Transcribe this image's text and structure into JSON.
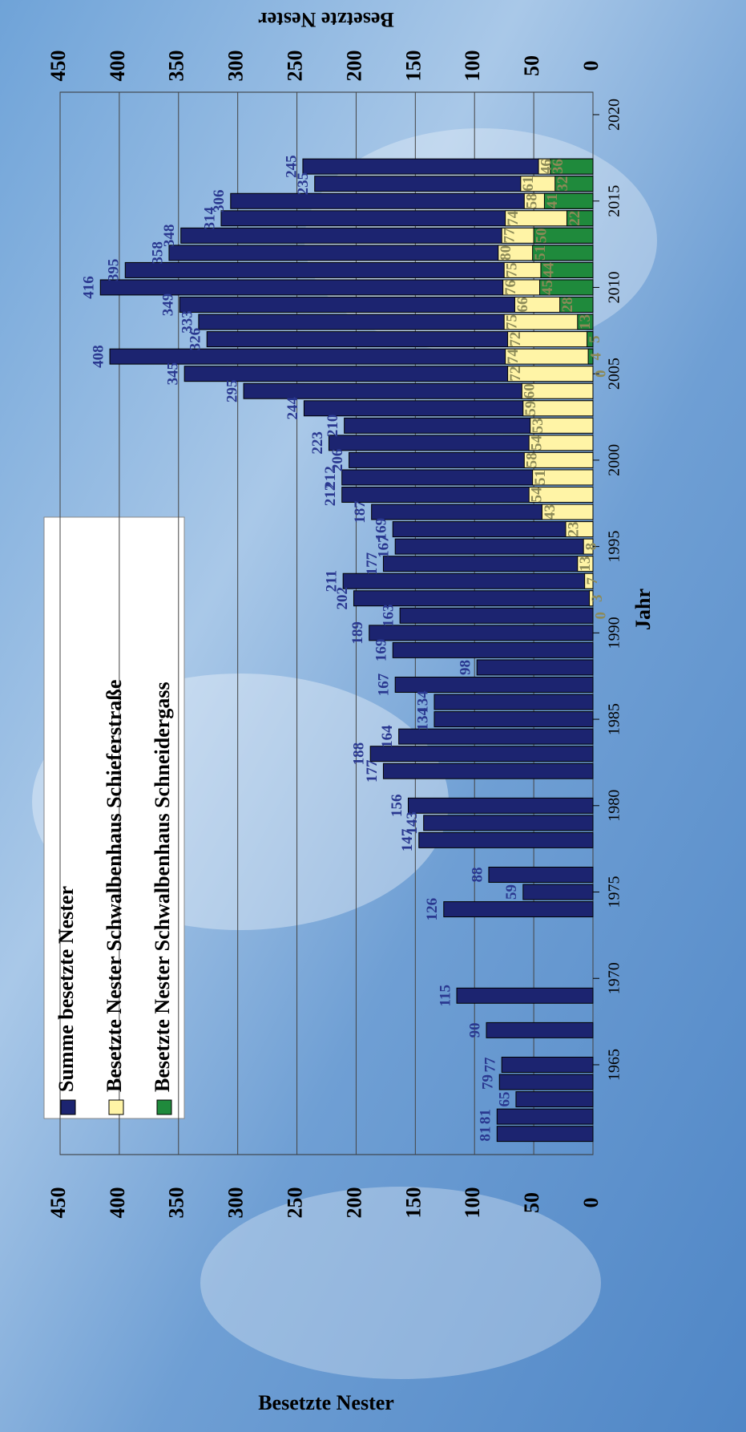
{
  "chart_data": {
    "type": "bar",
    "orientation": "horizontal",
    "xlabel": "Jahr",
    "ylabel": "Besetzte Nester",
    "x": [
      1961,
      1962,
      1963,
      1964,
      1965,
      1967,
      1969,
      1974,
      1975,
      1976,
      1978,
      1979,
      1980,
      1982,
      1983,
      1984,
      1985,
      1986,
      1987,
      1988,
      1989,
      1990,
      1991,
      1992,
      1993,
      1994,
      1995,
      1996,
      1997,
      1998,
      1999,
      2000,
      2001,
      2002,
      2003,
      2004,
      2005,
      2006,
      2007,
      2008,
      2009,
      2010,
      2011,
      2012,
      2013,
      2014,
      2015,
      2016,
      2017
    ],
    "series": [
      {
        "name": "Summe besetzte Nester",
        "color": "#1c2470",
        "label_color": "#2a3890",
        "values": [
          81,
          81,
          65,
          79,
          77,
          90,
          115,
          126,
          59,
          88,
          147,
          143,
          156,
          177,
          188,
          164,
          134,
          134,
          167,
          98,
          169,
          189,
          163,
          202,
          211,
          177,
          167,
          169,
          187,
          212,
          212,
          206,
          223,
          210,
          244,
          295,
          345,
          408,
          326,
          333,
          349,
          416,
          395,
          358,
          348,
          314,
          306,
          235,
          245
        ]
      },
      {
        "name": "Besetzte Nester Schwalbenhaus Schieferstraße",
        "color": "#fff4a6",
        "label_color": "#8c8a58",
        "values": [
          null,
          null,
          null,
          null,
          null,
          null,
          null,
          null,
          null,
          null,
          null,
          null,
          null,
          null,
          null,
          null,
          null,
          null,
          null,
          null,
          null,
          null,
          0,
          3,
          7,
          13,
          8,
          23,
          43,
          54,
          51,
          58,
          54,
          53,
          59,
          60,
          72,
          74,
          72,
          75,
          66,
          76,
          75,
          80,
          77,
          74,
          58,
          61,
          46
        ]
      },
      {
        "name": "Besetzte Nester Schwalbenhaus Schneidergass",
        "color": "#1f8a3c",
        "label_color": "#8c8a58",
        "values": [
          null,
          null,
          null,
          null,
          null,
          null,
          null,
          null,
          null,
          null,
          null,
          null,
          null,
          null,
          null,
          null,
          null,
          null,
          null,
          null,
          null,
          null,
          null,
          null,
          null,
          null,
          null,
          null,
          null,
          null,
          null,
          null,
          null,
          null,
          null,
          null,
          0,
          4,
          5,
          13,
          28,
          45,
          44,
          51,
          50,
          22,
          41,
          32,
          36
        ]
      }
    ],
    "xlim": [
      1959.8,
      2021.3
    ],
    "xticks": [
      1965,
      1970,
      1975,
      1980,
      1985,
      1990,
      1995,
      2000,
      2005,
      2010,
      2015,
      2020
    ],
    "ylim": [
      0,
      450
    ],
    "yticks": [
      0,
      50,
      100,
      150,
      200,
      250,
      300,
      350,
      400,
      450
    ],
    "grid": true
  }
}
